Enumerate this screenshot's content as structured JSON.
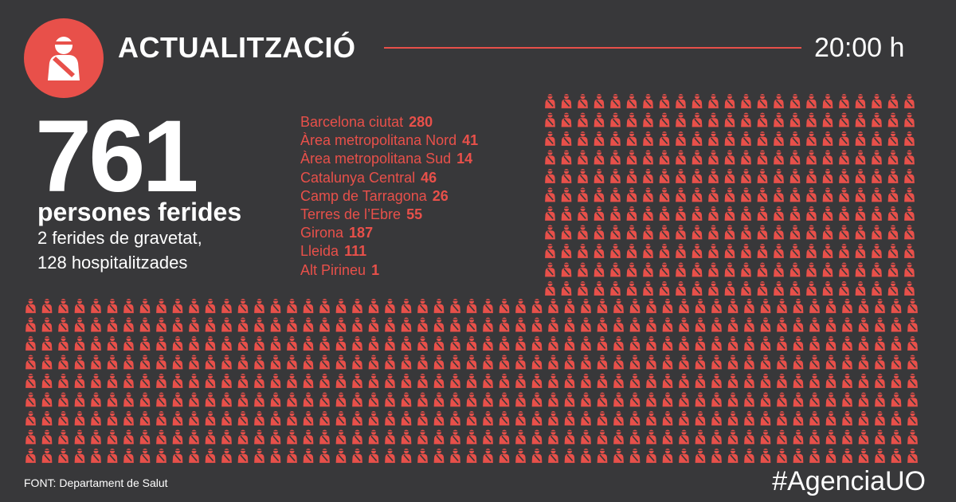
{
  "header": {
    "logo_icon": "injured-person-icon",
    "title": "ACTUALITZACIÓ",
    "time": "20:00 h"
  },
  "summary": {
    "total": "761",
    "label": "persones ferides",
    "line1": "2 ferides de gravetat,",
    "line2": "128 hospitalitzades"
  },
  "regions": [
    {
      "name": "Barcelona ciutat",
      "value": "280"
    },
    {
      "name": "Àrea metropolitana Nord",
      "value": "41"
    },
    {
      "name": "Àrea metropolitana Sud",
      "value": "14"
    },
    {
      "name": "Catalunya Central",
      "value": "46"
    },
    {
      "name": "Camp de Tarragona",
      "value": "26"
    },
    {
      "name": "Terres de l’Ebre",
      "value": "55"
    },
    {
      "name": "Girona",
      "value": "187"
    },
    {
      "name": "Lleida",
      "value": "111"
    },
    {
      "name": "Alt Pirineu",
      "value": "1"
    }
  ],
  "icon_grid": {
    "icon": "injured-person-icon",
    "count": 761
  },
  "footer": {
    "source": "FONT: Departament de Salut",
    "handle": "#AgenciaUO"
  },
  "colors": {
    "background": "#38383a",
    "accent": "#e8504a",
    "text": "#ffffff"
  }
}
